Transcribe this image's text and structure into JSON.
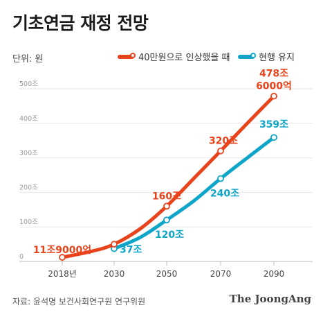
{
  "header": {
    "title": "기초연금 재정 전망",
    "unit": "단위: 원"
  },
  "legend": [
    {
      "label": "40만원으로 인상했을 때",
      "color": "#e8431b"
    },
    {
      "label": "현행 유지",
      "color": "#0ea5c9"
    }
  ],
  "chart_data": {
    "type": "line",
    "title": "기초연금 재정 전망",
    "x": [
      2018,
      2030,
      2050,
      2070,
      2090
    ],
    "x_tick_labels": [
      "2018년",
      "2030",
      "2050",
      "2070",
      "2090"
    ],
    "y_tick_labels": [
      "0",
      "100조",
      "200조",
      "300조",
      "400조",
      "500조"
    ],
    "y_ticks": [
      0,
      100,
      200,
      300,
      400,
      500
    ],
    "ylim": [
      0,
      500
    ],
    "unit": "조 원",
    "grid": true,
    "legend_position": "top",
    "series": [
      {
        "name": "40만원으로 인상했을 때",
        "color": "#e8431b",
        "x": [
          2018,
          2025,
          2030,
          2040,
          2050,
          2060,
          2070,
          2080,
          2090
        ],
        "values": [
          11.9,
          30,
          50,
          95,
          160,
          240,
          320,
          400,
          478.6
        ]
      },
      {
        "name": "현행 유지",
        "color": "#0ea5c9",
        "x": [
          2030,
          2040,
          2050,
          2060,
          2070,
          2080,
          2090
        ],
        "values": [
          37,
          70,
          120,
          175,
          240,
          300,
          359
        ]
      }
    ],
    "annotations": [
      {
        "series": 0,
        "x": 2018,
        "y": 11.9,
        "lines": [
          "11조9000억"
        ],
        "anchor": "middle",
        "dx": 0,
        "dy": -6
      },
      {
        "series": 0,
        "x": 2050,
        "y": 160,
        "lines": [
          "160조"
        ],
        "anchor": "middle",
        "dx": 0,
        "dy": -10
      },
      {
        "series": 0,
        "x": 2070,
        "y": 320,
        "lines": [
          "320조"
        ],
        "anchor": "middle",
        "dx": 4,
        "dy": -10
      },
      {
        "series": 0,
        "x": 2090,
        "y": 478.6,
        "lines": [
          "478조",
          "6000억"
        ],
        "anchor": "middle",
        "dx": 0,
        "dy": -28
      },
      {
        "series": 1,
        "x": 2030,
        "y": 37,
        "lines": [
          "37조"
        ],
        "anchor": "start",
        "dx": 8,
        "dy": 6
      },
      {
        "series": 1,
        "x": 2050,
        "y": 120,
        "lines": [
          "120조"
        ],
        "anchor": "middle",
        "dx": 4,
        "dy": 26
      },
      {
        "series": 1,
        "x": 2070,
        "y": 240,
        "lines": [
          "240조"
        ],
        "anchor": "middle",
        "dx": 6,
        "dy": 26
      },
      {
        "series": 1,
        "x": 2090,
        "y": 359,
        "lines": [
          "359조"
        ],
        "anchor": "middle",
        "dx": 0,
        "dy": -14
      }
    ]
  },
  "footer": {
    "source": "자료: 윤석명 보건사회연구원 연구위원",
    "logo": "The JoongAng"
  }
}
